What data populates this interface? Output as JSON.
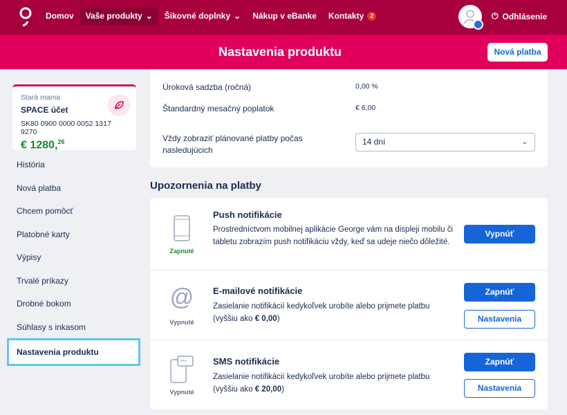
{
  "nav": {
    "items": [
      {
        "label": "Domov"
      },
      {
        "label": "Vaše produkty"
      },
      {
        "label": "Šikovné doplnky"
      },
      {
        "label": "Nákup v eBanke"
      },
      {
        "label": "Kontakty",
        "badge": "2"
      }
    ],
    "logout": "Odhlásenie"
  },
  "banner": {
    "title": "Nastavenia produktu",
    "new_payment": "Nová platba"
  },
  "account": {
    "owner": "Stará mama",
    "name": "SPACE účet",
    "iban": "SK80 0900 0000 0052 1317 9270",
    "balance_main": "€ 1280,",
    "balance_cents": "26"
  },
  "sidebar": {
    "items": [
      {
        "label": "História"
      },
      {
        "label": "Nová platba"
      },
      {
        "label": "Chcem pomôcť"
      },
      {
        "label": "Platobné karty"
      },
      {
        "label": "Výpisy"
      },
      {
        "label": "Trvalé príkazy"
      },
      {
        "label": "Drobné bokom"
      },
      {
        "label": "Súhlasy s inkasom"
      },
      {
        "label": "Nastavenia produktu"
      }
    ]
  },
  "settings": {
    "interest_label": "Úroková sadzba (ročná)",
    "interest_value": "0,00 %",
    "fee_label": "Štandardný mesačný poplatok",
    "fee_value": "€ 6,00",
    "planned_label": "Vždy zobraziť plánované platby počas nasledujúcich",
    "planned_value": "14 dní"
  },
  "notifications": {
    "title": "Upozornenia na platby",
    "items": [
      {
        "title": "Push notifikácie",
        "desc": "Prostredníctvom mobilnej aplikácie George vám na displeji mobilu či tabletu zobrazím push notifikáciu vždy, keď sa udeje niečo dôležité.",
        "state": "Zapnuté",
        "button": "Vypnúť"
      },
      {
        "title": "E-mailové notifikácie",
        "desc_pre": "Zasielanie notifikácií kedykoľvek urobíte alebo prijmete platbu (vyššiu ako ",
        "desc_amount": "€ 0,00",
        "desc_post": ")",
        "state": "Vypnuté",
        "button": "Zapnúť",
        "settings": "Nastavenia"
      },
      {
        "title": "SMS notifikácie",
        "desc_pre": "Zasielanie notifikácií kedykoľvek urobíte alebo prijmete platbu (vyššiu ako ",
        "desc_amount": "€ 20,00",
        "desc_post": ")",
        "state": "Vypnuté",
        "button": "Zapnúť",
        "settings": "Nastavenia"
      }
    ]
  },
  "colors": {
    "nav": "#a8003f",
    "banner": "#e2005d",
    "primary": "#1565d8",
    "on": "#1c8a2e"
  }
}
